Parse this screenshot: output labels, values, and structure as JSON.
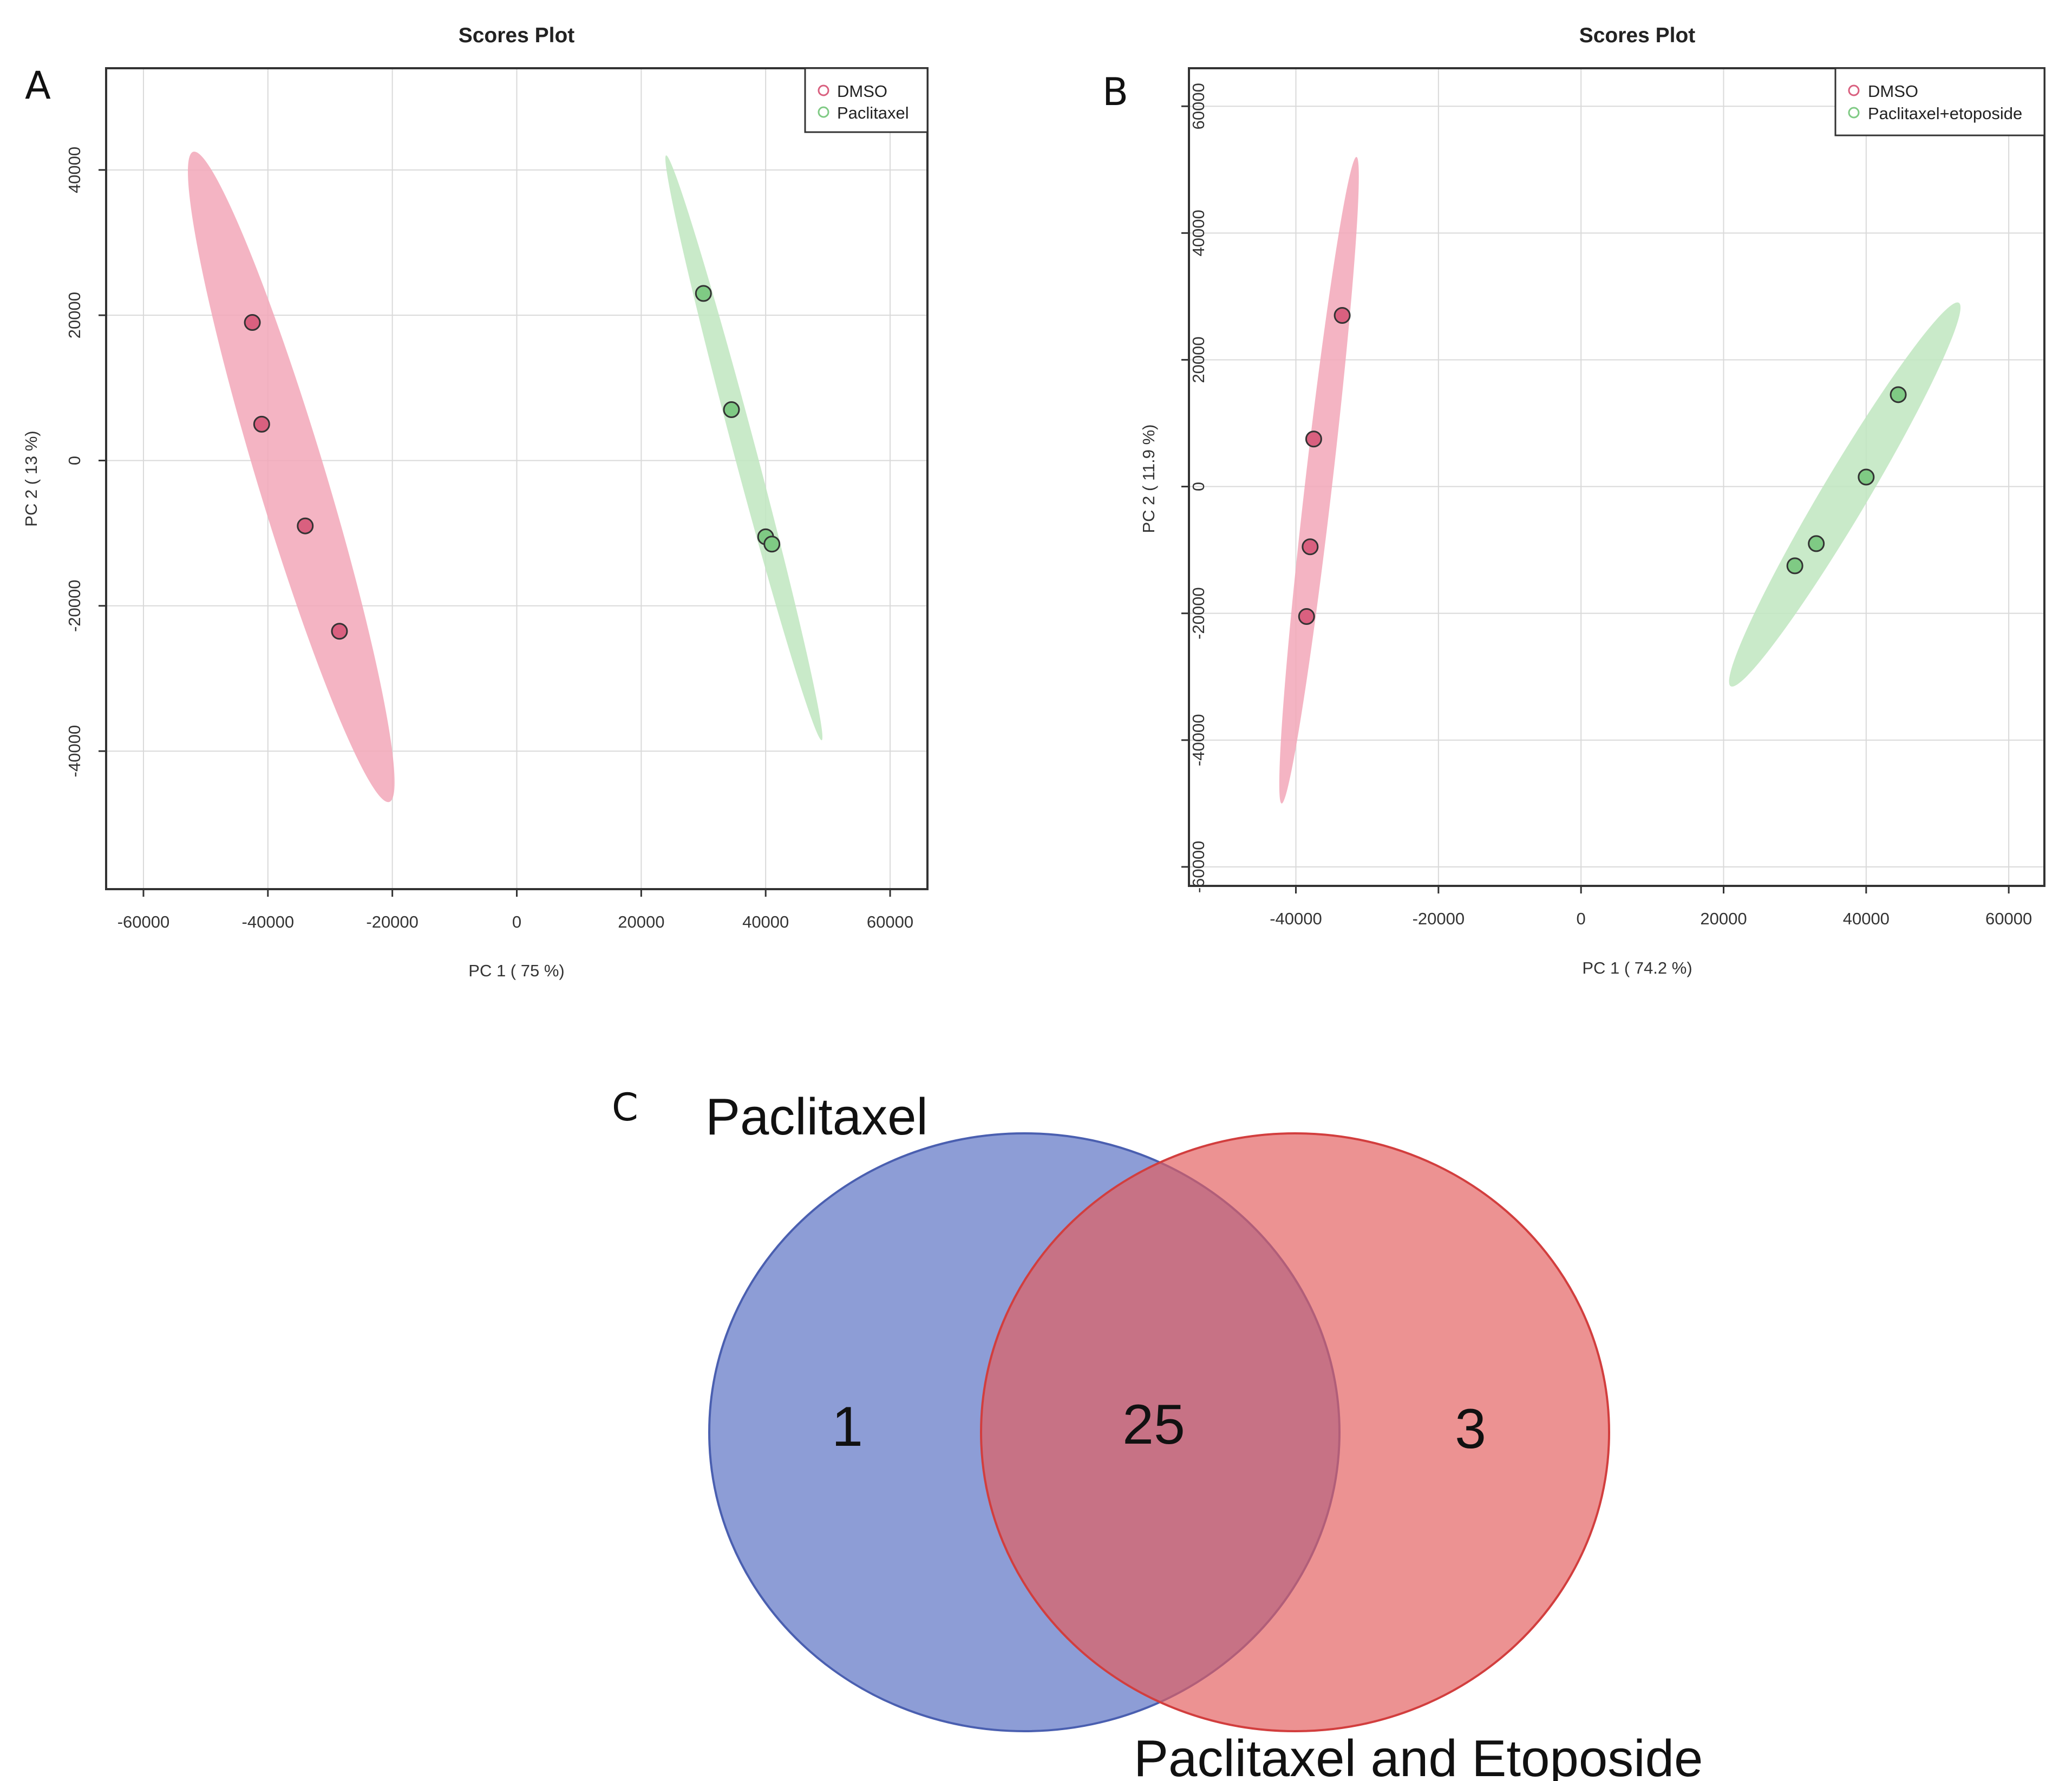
{
  "colors": {
    "dmso_point": "#d9607f",
    "dmso_ellipse": "#f2a7b8",
    "treat_point": "#7fca84",
    "treat_ellipse": "#bfe6c0",
    "grid": "#d9d9d9",
    "venn_left": "#6d82cb",
    "venn_right": "#e35e5e",
    "venn_overlap": "#a9597a"
  },
  "chart_data": [
    {
      "panel": "A",
      "type": "scatter",
      "title": "Scores Plot",
      "xlabel": "PC 1 ( 75 %)",
      "ylabel": "PC 2 ( 13 %)",
      "xlim": [
        -66000,
        66000
      ],
      "ylim": [
        -59000,
        54000
      ],
      "xticks": [
        -60000,
        -40000,
        -20000,
        0,
        20000,
        40000,
        60000
      ],
      "xtick_labels": [
        "-60000",
        "-40000",
        "-20000",
        "0",
        "20000",
        "40000",
        "60000"
      ],
      "yticks": [
        -40000,
        -20000,
        0,
        20000,
        40000
      ],
      "ytick_labels": [
        "-40000",
        "-20000",
        "0",
        "20000",
        "40000"
      ],
      "grid": true,
      "legend_position": "top-right",
      "series": [
        {
          "name": "DMSO",
          "color": "#d9607f",
          "x": [
            -42500,
            -41000,
            -34000,
            -28500
          ],
          "y": [
            19000,
            5000,
            -9000,
            -23500
          ],
          "ellipse": {
            "end1": [
              -52000,
              42500
            ],
            "end2": [
              -20500,
              -47000
            ],
            "halfwidth": 5500
          }
        },
        {
          "name": "Paclitaxel",
          "color": "#7fca84",
          "x": [
            30000,
            34500,
            40000,
            41000
          ],
          "y": [
            23000,
            7000,
            -10500,
            -11500
          ],
          "ellipse": {
            "end1": [
              24000,
              42000
            ],
            "end2": [
              49000,
              -38500
            ],
            "halfwidth": 1800
          }
        }
      ]
    },
    {
      "panel": "B",
      "type": "scatter",
      "title": "Scores Plot",
      "xlabel": "PC 1 ( 74.2 %)",
      "ylabel": "PC 2 ( 11.9 %)",
      "xlim": [
        -55000,
        65000
      ],
      "ylim": [
        -63000,
        66000
      ],
      "xticks": [
        -40000,
        -20000,
        0,
        20000,
        40000,
        60000
      ],
      "xtick_labels": [
        "-40000",
        "-20000",
        "0",
        "20000",
        "40000",
        "60000"
      ],
      "yticks": [
        -60000,
        -40000,
        -20000,
        0,
        20000,
        40000,
        60000
      ],
      "ytick_labels": [
        "-60000",
        "-40000",
        "-20000",
        "0",
        "20000",
        "40000",
        "60000"
      ],
      "grid": true,
      "legend_position": "top-right",
      "series": [
        {
          "name": "DMSO",
          "color": "#d9607f",
          "x": [
            -33500,
            -37500,
            -38000,
            -38500
          ],
          "y": [
            27000,
            7500,
            -9500,
            -20500
          ],
          "ellipse": {
            "end1": [
              -31500,
              52000
            ],
            "end2": [
              -42000,
              -50000
            ],
            "halfwidth": 1900
          }
        },
        {
          "name": "Paclitaxel+etoposide",
          "color": "#7fca84",
          "x": [
            44500,
            40000,
            33000,
            30000
          ],
          "y": [
            14500,
            1500,
            -9000,
            -12500
          ],
          "ellipse": {
            "end1": [
              53000,
              29000
            ],
            "end2": [
              21000,
              -31500
            ],
            "halfwidth": 3200
          }
        }
      ]
    },
    {
      "panel": "C",
      "type": "venn",
      "sets": [
        {
          "label": "Paclitaxel",
          "only": 1,
          "color": "#6d82cb"
        },
        {
          "label": "Paclitaxel and Etoposide",
          "only": 3,
          "color": "#e35e5e"
        }
      ],
      "intersection": 25
    }
  ]
}
